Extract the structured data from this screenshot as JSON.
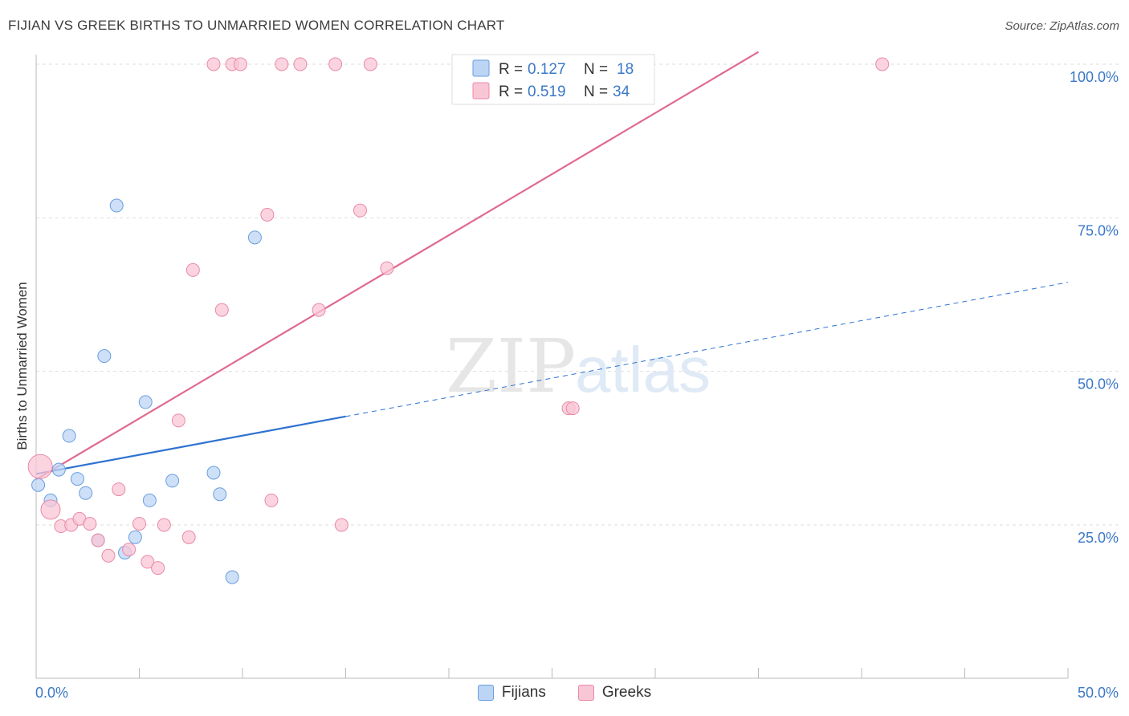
{
  "title": "FIJIAN VS GREEK BIRTHS TO UNMARRIED WOMEN CORRELATION CHART",
  "source": "Source: ZipAtlas.com",
  "colors": {
    "fijian_fill": "#bcd5f5",
    "fijian_stroke": "#6a9ede",
    "fijian_line": "#2f72d0",
    "greek_fill": "#f9c6d5",
    "greek_stroke": "#e88aa8",
    "greek_line": "#e06a92",
    "tick": "#3b78c7",
    "grid": "#dddddd"
  },
  "chart_data": {
    "type": "scatter",
    "title": "FIJIAN VS GREEK BIRTHS TO UNMARRIED WOMEN CORRELATION CHART",
    "xlabel": "",
    "ylabel": "Births to Unmarried Women",
    "xlim": [
      0,
      50
    ],
    "ylim": [
      0,
      102
    ],
    "x_tick_labels": [
      "0.0%",
      "50.0%"
    ],
    "y_ticks": [
      25,
      50,
      75,
      100
    ],
    "y_tick_labels": [
      "25.0%",
      "50.0%",
      "75.0%",
      "100.0%"
    ],
    "watermark": "ZIPatlas",
    "legend": [
      {
        "r_label": "R =",
        "r_value": "0.127",
        "n_label": "N =",
        "n_value": "18"
      },
      {
        "r_label": "R =",
        "r_value": "0.519",
        "n_label": "N =",
        "n_value": "34"
      }
    ],
    "series": [
      {
        "name": "Fijians",
        "points": [
          [
            0.1,
            31.5
          ],
          [
            0.7,
            29.0
          ],
          [
            1.1,
            34.0
          ],
          [
            1.6,
            39.5
          ],
          [
            2.0,
            32.5
          ],
          [
            2.4,
            30.2
          ],
          [
            3.0,
            22.5
          ],
          [
            3.3,
            52.5
          ],
          [
            3.9,
            77.0
          ],
          [
            4.3,
            20.5
          ],
          [
            4.8,
            23.0
          ],
          [
            5.3,
            45.0
          ],
          [
            5.5,
            29.0
          ],
          [
            6.6,
            32.2
          ],
          [
            8.6,
            33.5
          ],
          [
            8.9,
            30.0
          ],
          [
            9.5,
            16.5
          ],
          [
            10.6,
            71.8
          ]
        ],
        "trend": {
          "x0": 0,
          "y0": 33.3,
          "x_solid_end": 15,
          "x1": 50,
          "y1": 64.5
        }
      },
      {
        "name": "Greeks",
        "points": [
          [
            0.2,
            34.5
          ],
          [
            0.7,
            27.5
          ],
          [
            1.2,
            24.8
          ],
          [
            1.7,
            25.0
          ],
          [
            2.1,
            26.0
          ],
          [
            2.6,
            25.2
          ],
          [
            3.0,
            22.5
          ],
          [
            3.5,
            20.0
          ],
          [
            4.0,
            30.8
          ],
          [
            4.5,
            21.0
          ],
          [
            5.0,
            25.2
          ],
          [
            5.4,
            19.0
          ],
          [
            5.9,
            18.0
          ],
          [
            6.2,
            25.0
          ],
          [
            6.9,
            42.0
          ],
          [
            7.4,
            23.0
          ],
          [
            7.6,
            66.5
          ],
          [
            8.6,
            100.0
          ],
          [
            9.0,
            60.0
          ],
          [
            9.5,
            100.0
          ],
          [
            9.9,
            100.0
          ],
          [
            11.2,
            75.5
          ],
          [
            11.4,
            29.0
          ],
          [
            11.9,
            100.0
          ],
          [
            12.8,
            100.0
          ],
          [
            13.7,
            60.0
          ],
          [
            14.5,
            100.0
          ],
          [
            14.8,
            25.0
          ],
          [
            15.7,
            76.2
          ],
          [
            16.2,
            100.0
          ],
          [
            17.0,
            66.8
          ],
          [
            25.8,
            44.0
          ],
          [
            26.0,
            44.0
          ],
          [
            41.0,
            100.0
          ]
        ],
        "trend": {
          "x0": 0,
          "y0": 32.4,
          "x1": 35,
          "y1": 102
        }
      }
    ]
  },
  "bottom_legend": [
    "Fijians",
    "Greeks"
  ]
}
